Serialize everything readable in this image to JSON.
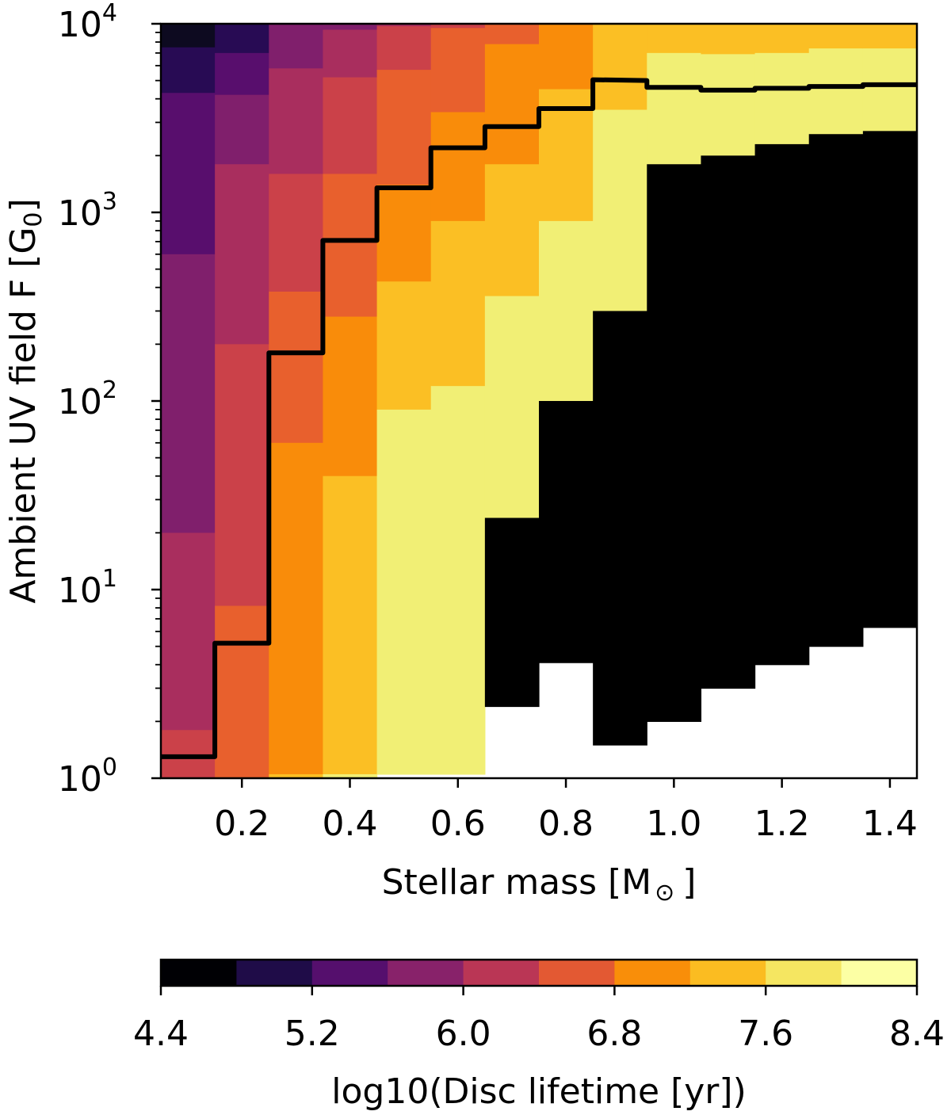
{
  "chart_data": {
    "type": "heatmap",
    "xlabel": "Stellar mass [M",
    "xlabel_sub": "⊙",
    "xlabel_end": "]",
    "ylabel": "Ambient UV field F [G",
    "ylabel_sub": "0",
    "ylabel_end": "]",
    "xlim": [
      0.05,
      1.45
    ],
    "ylim": [
      1,
      10000
    ],
    "yscale": "log",
    "x_ticks": [
      {
        "v": 0.2,
        "label": "0.2"
      },
      {
        "v": 0.4,
        "label": "0.4"
      },
      {
        "v": 0.6,
        "label": "0.6"
      },
      {
        "v": 0.8,
        "label": "0.8"
      },
      {
        "v": 1.0,
        "label": "1.0"
      },
      {
        "v": 1.2,
        "label": "1.2"
      },
      {
        "v": 1.4,
        "label": "1.4"
      }
    ],
    "y_ticks": [
      {
        "v": 1,
        "base": "10",
        "exp": "0"
      },
      {
        "v": 10,
        "base": "10",
        "exp": "1"
      },
      {
        "v": 100,
        "base": "10",
        "exp": "2"
      },
      {
        "v": 1000,
        "base": "10",
        "exp": "3"
      },
      {
        "v": 10000,
        "base": "10",
        "exp": "4"
      }
    ],
    "mass_bins": [
      0.05,
      0.15,
      0.25,
      0.35,
      0.45,
      0.55,
      0.65,
      0.75,
      0.85,
      0.95,
      1.05,
      1.15,
      1.25,
      1.35,
      1.45
    ],
    "level_colors": [
      "#000004",
      "#1f0c48",
      "#550f6d",
      "#88226a",
      "#ba3655",
      "#e35933",
      "#f98e09",
      "#fbbc21",
      "#f5e661",
      "#fcffa4"
    ],
    "filled_colors": [
      "#0d0a20",
      "#280b54",
      "#580e6d",
      "#801f6c",
      "#a92e5e",
      "#cb4149",
      "#e8602d",
      "#f98c0a",
      "#fbbf24",
      "#f1ef75"
    ],
    "thresholds": [
      [
        7500,
        4300,
        600,
        20,
        1.8
      ],
      [
        null,
        7000,
        4200,
        1800,
        200,
        8.2
      ],
      [
        null,
        null,
        9900,
        5800,
        1600,
        380,
        60,
        1.05
      ],
      [
        null,
        null,
        null,
        9300,
        5200,
        1600,
        280,
        40,
        1.05
      ],
      [
        null,
        null,
        null,
        null,
        9700,
        5700,
        1400,
        430,
        90,
        1.05
      ],
      [
        null,
        null,
        null,
        null,
        null,
        9500,
        3400,
        900,
        120,
        1.05
      ],
      [
        null,
        null,
        null,
        null,
        null,
        null,
        7800,
        1800,
        360,
        24,
        2.4
      ],
      [
        null,
        null,
        null,
        null,
        null,
        null,
        null,
        4500,
        900,
        100,
        4.1
      ],
      [
        null,
        null,
        null,
        null,
        null,
        null,
        null,
        9900,
        3500,
        300,
        14,
        1.5
      ],
      [
        null,
        null,
        null,
        null,
        null,
        null,
        null,
        null,
        7000,
        1800,
        90,
        6.3,
        2.0
      ],
      [
        null,
        null,
        null,
        null,
        null,
        null,
        null,
        null,
        6900,
        2000,
        140,
        13,
        3.0
      ],
      [
        null,
        null,
        null,
        null,
        null,
        null,
        null,
        null,
        7000,
        2300,
        290,
        25,
        4.0
      ],
      [
        null,
        null,
        null,
        null,
        null,
        null,
        null,
        null,
        7400,
        2600,
        600,
        40,
        5.0
      ],
      [
        null,
        null,
        null,
        null,
        null,
        null,
        null,
        null,
        7400,
        2700,
        950,
        80,
        6.3
      ]
    ],
    "contour": [
      {
        "x": 0.05,
        "y": 1.3
      },
      {
        "x": 0.15,
        "y": 1.3
      },
      {
        "x": 0.15,
        "y": 5.2
      },
      {
        "x": 0.25,
        "y": 5.2
      },
      {
        "x": 0.25,
        "y": 180
      },
      {
        "x": 0.35,
        "y": 180
      },
      {
        "x": 0.35,
        "y": 710
      },
      {
        "x": 0.45,
        "y": 710
      },
      {
        "x": 0.45,
        "y": 1350
      },
      {
        "x": 0.55,
        "y": 1350
      },
      {
        "x": 0.55,
        "y": 2200
      },
      {
        "x": 0.65,
        "y": 2200
      },
      {
        "x": 0.65,
        "y": 2850
      },
      {
        "x": 0.75,
        "y": 2850
      },
      {
        "x": 0.75,
        "y": 3550
      },
      {
        "x": 0.85,
        "y": 3550
      },
      {
        "x": 0.85,
        "y": 5050
      },
      {
        "x": 0.95,
        "y": 5000
      },
      {
        "x": 0.95,
        "y": 4600
      },
      {
        "x": 1.05,
        "y": 4600
      },
      {
        "x": 1.05,
        "y": 4450
      },
      {
        "x": 1.15,
        "y": 4450
      },
      {
        "x": 1.15,
        "y": 4550
      },
      {
        "x": 1.25,
        "y": 4550
      },
      {
        "x": 1.25,
        "y": 4650
      },
      {
        "x": 1.35,
        "y": 4650
      },
      {
        "x": 1.35,
        "y": 4750
      },
      {
        "x": 1.45,
        "y": 4750
      }
    ],
    "colorbar": {
      "label": "log10(Disc lifetime [yr])",
      "range": [
        4.4,
        8.4
      ],
      "ticks": [
        {
          "v": 4.4,
          "label": "4.4"
        },
        {
          "v": 5.2,
          "label": "5.2"
        },
        {
          "v": 6.0,
          "label": "6.0"
        },
        {
          "v": 6.8,
          "label": "6.8"
        },
        {
          "v": 7.6,
          "label": "7.6"
        },
        {
          "v": 8.4,
          "label": "8.4"
        }
      ]
    }
  }
}
